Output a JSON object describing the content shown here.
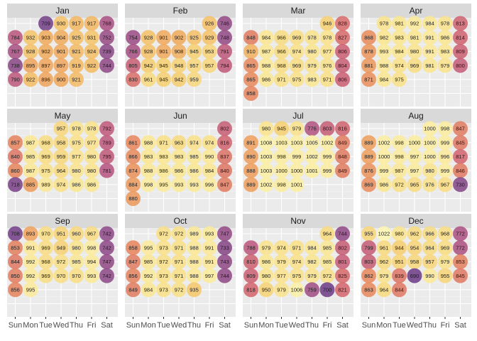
{
  "chart_data": {
    "type": "heatmap",
    "title": "",
    "xlabel": "",
    "ylabel": "",
    "weekday_tick_labels": [
      "Sun",
      "Mon",
      "Tue",
      "Wed",
      "Thu",
      "Fri",
      "Sat"
    ],
    "legend": "none",
    "grid": true,
    "color_scale": {
      "low_value": 700,
      "high_value": 1022,
      "palette": [
        "#6b3a86",
        "#8a4685",
        "#b5527f",
        "#d4646b",
        "#e7855a",
        "#f0a85a",
        "#f6cd6c",
        "#fae58d",
        "#fef7b2"
      ]
    },
    "months": [
      {
        "name": "Jan",
        "start_dow": 2,
        "values": [
          709,
          930,
          917,
          917,
          768,
          784,
          932,
          903,
          904,
          925,
          931,
          752,
          767,
          928,
          902,
          901,
          921,
          924,
          739,
          738,
          895,
          897,
          897,
          919,
          922,
          744,
          790,
          922,
          896,
          900,
          921
        ]
      },
      {
        "name": "Feb",
        "start_dow": 5,
        "values": [
          926,
          746,
          754,
          928,
          901,
          902,
          925,
          929,
          748,
          766,
          928,
          901,
          908,
          945,
          953,
          791,
          805,
          942,
          945,
          948,
          957,
          957,
          794,
          830,
          961,
          945,
          942,
          959
        ]
      },
      {
        "name": "Mar",
        "start_dow": 5,
        "values": [
          946,
          828,
          848,
          984,
          966,
          969,
          978,
          978,
          827,
          910,
          987,
          966,
          974,
          980,
          977,
          806,
          865,
          988,
          968,
          969,
          979,
          976,
          804,
          865,
          986,
          971,
          975,
          983,
          971,
          806,
          858
        ]
      },
      {
        "name": "Apr",
        "start_dow": 1,
        "values": [
          978,
          981,
          992,
          984,
          978,
          813,
          868,
          982,
          983,
          981,
          991,
          986,
          814,
          878,
          993,
          984,
          980,
          991,
          983,
          809,
          881,
          988,
          974,
          969,
          981,
          979,
          800,
          871,
          984,
          975
        ]
      },
      {
        "name": "May",
        "start_dow": 3,
        "values": [
          957,
          978,
          978,
          792,
          857,
          987,
          968,
          958,
          975,
          977,
          789,
          840,
          985,
          969,
          959,
          977,
          980,
          795,
          860,
          987,
          975,
          964,
          980,
          980,
          781,
          718,
          885,
          989,
          974,
          986,
          986
        ]
      },
      {
        "name": "Jun",
        "start_dow": 6,
        "values": [
          802,
          861,
          988,
          971,
          963,
          974,
          974,
          816,
          866,
          983,
          983,
          983,
          985,
          990,
          837,
          874,
          988,
          986,
          986,
          986,
          984,
          840,
          884,
          998,
          995,
          993,
          993,
          996,
          847,
          880
        ]
      },
      {
        "name": "Jul",
        "start_dow": 1,
        "values": [
          980,
          945,
          979,
          776,
          803,
          816,
          891,
          1008,
          1003,
          1003,
          1005,
          1002,
          849,
          890,
          1003,
          998,
          999,
          1002,
          999,
          848,
          888,
          1003,
          1000,
          1000,
          1001,
          999,
          849,
          889,
          1002,
          998,
          1001
        ]
      },
      {
        "name": "Aug",
        "start_dow": 4,
        "values": [
          1000,
          998,
          847,
          889,
          1002,
          998,
          1000,
          1000,
          999,
          845,
          889,
          1000,
          998,
          997,
          1000,
          996,
          817,
          876,
          999,
          987,
          997,
          980,
          999,
          846,
          869,
          986,
          972,
          965,
          976,
          967,
          730
        ]
      },
      {
        "name": "Sep",
        "start_dow": 0,
        "values": [
          708,
          893,
          970,
          951,
          960,
          967,
          742,
          853,
          991,
          969,
          949,
          980,
          998,
          742,
          844,
          992,
          968,
          972,
          985,
          994,
          747,
          850,
          992,
          969,
          970,
          970,
          993,
          742,
          856,
          995
        ]
      },
      {
        "name": "Oct",
        "start_dow": 2,
        "values": [
          972,
          972,
          989,
          993,
          747,
          858,
          995,
          973,
          971,
          988,
          991,
          733,
          847,
          985,
          972,
          971,
          988,
          991,
          743,
          856,
          992,
          973,
          971,
          988,
          997,
          744,
          849,
          984,
          973,
          972,
          935
        ]
      },
      {
        "name": "Nov",
        "start_dow": 5,
        "values": [
          964,
          744,
          788,
          979,
          974,
          971,
          984,
          985,
          802,
          810,
          986,
          979,
          974,
          982,
          985,
          801,
          809,
          980,
          977,
          975,
          979,
          972,
          825,
          818,
          950,
          979,
          1006,
          759,
          700,
          821
        ]
      },
      {
        "name": "Dec",
        "start_dow": 0,
        "values": [
          955,
          1022,
          980,
          962,
          966,
          968,
          772,
          799,
          961,
          944,
          954,
          964,
          969,
          772,
          803,
          962,
          951,
          958,
          957,
          979,
          853,
          862,
          979,
          839,
          690,
          990,
          955,
          845,
          863,
          964,
          844
        ]
      }
    ]
  }
}
